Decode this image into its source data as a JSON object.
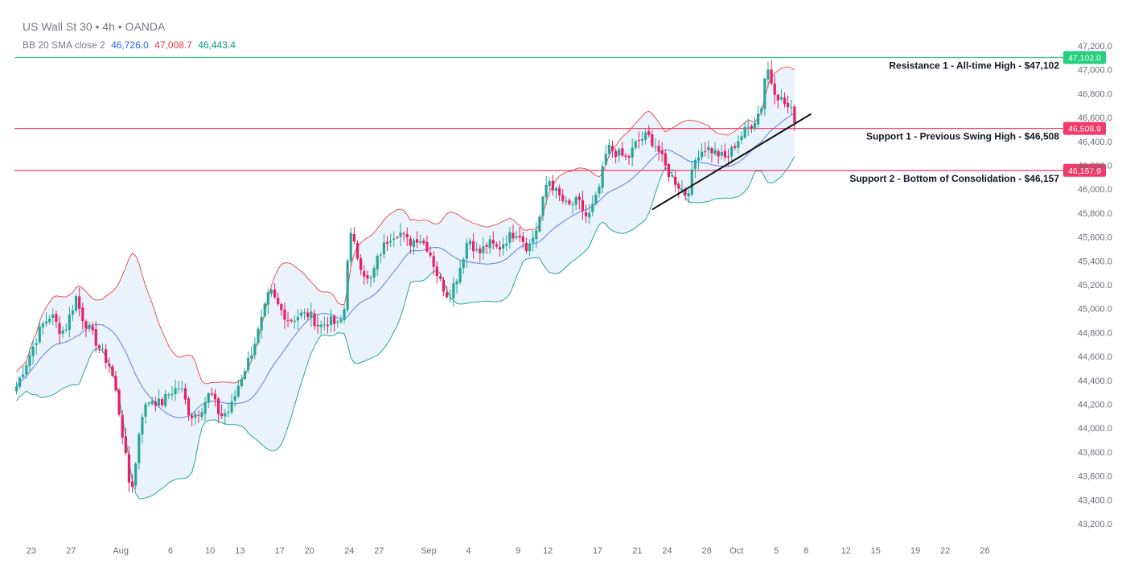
{
  "header": {
    "title": "US Wall St 30 • 4h • OANDA",
    "indicator_label": "BB 20 SMA close 2",
    "indicator_basis": "46,726.0",
    "indicator_upper": "47,008.7",
    "indicator_lower": "46,443.4"
  },
  "colors": {
    "up": "#26a69a",
    "down": "#e91e63",
    "basis": "#5b7fe0",
    "upper_band": "#ef5350",
    "lower_band": "#26a69a",
    "band_fill": "#eaf3fb",
    "resistance": "#26d07c",
    "support": "#f23a6a",
    "trendline": "#111111",
    "axis_text": "#6b6e78",
    "indicator_basis": "#2962ff",
    "indicator_upper": "#f23645",
    "indicator_lower": "#089981"
  },
  "chart_data": {
    "type": "line",
    "chart_kind": "candlestick with Bollinger Bands (20, 2)",
    "instrument": "US Wall St 30",
    "timeframe": "4h",
    "source": "OANDA",
    "ylim": [
      43000,
      47300
    ],
    "y_ticks": [
      47200,
      47000,
      46800,
      46600,
      46400,
      46200,
      46000,
      45800,
      45600,
      45400,
      45200,
      45000,
      44800,
      44600,
      44400,
      44200,
      44000,
      43800,
      43600,
      43400,
      43200
    ],
    "y_tick_labels": [
      "47,200.0",
      "47,000.0",
      "46,800.0",
      "46,600.0",
      "46,400.0",
      "46,200.0",
      "46,000.0",
      "45,800.0",
      "45,600.0",
      "45,400.0",
      "45,200.0",
      "45,000.0",
      "44,800.0",
      "44,600.0",
      "44,400.0",
      "44,200.0",
      "44,000.0",
      "43,800.0",
      "43,600.0",
      "43,400.0",
      "43,200.0"
    ],
    "x_ticks": [
      {
        "label": "23",
        "t": 0
      },
      {
        "label": "27",
        "t": 4
      },
      {
        "label": "Aug",
        "t": 9
      },
      {
        "label": "6",
        "t": 14
      },
      {
        "label": "10",
        "t": 18
      },
      {
        "label": "13",
        "t": 21
      },
      {
        "label": "17",
        "t": 25
      },
      {
        "label": "20",
        "t": 28
      },
      {
        "label": "24",
        "t": 32
      },
      {
        "label": "27",
        "t": 35
      },
      {
        "label": "Sep",
        "t": 40
      },
      {
        "label": "4",
        "t": 44
      },
      {
        "label": "9",
        "t": 49
      },
      {
        "label": "12",
        "t": 52
      },
      {
        "label": "17",
        "t": 57
      },
      {
        "label": "21",
        "t": 61
      },
      {
        "label": "24",
        "t": 64
      },
      {
        "label": "28",
        "t": 68
      },
      {
        "label": "Oct",
        "t": 71
      },
      {
        "label": "5",
        "t": 75
      },
      {
        "label": "8",
        "t": 78
      },
      {
        "label": "12",
        "t": 82
      },
      {
        "label": "15",
        "t": 85
      },
      {
        "label": "19",
        "t": 89
      },
      {
        "label": "22",
        "t": 92
      },
      {
        "label": "26",
        "t": 96
      }
    ],
    "price_path": [
      [
        -1.5,
        44350
      ],
      [
        -1,
        44450
      ],
      [
        0,
        44650
      ],
      [
        1,
        44850
      ],
      [
        2,
        44950
      ],
      [
        3,
        44800
      ],
      [
        3.5,
        44850
      ],
      [
        4.5,
        45100
      ],
      [
        5,
        44950
      ],
      [
        6,
        44800
      ],
      [
        7,
        44650
      ],
      [
        8,
        44500
      ],
      [
        8.5,
        44300
      ],
      [
        9,
        44050
      ],
      [
        9.5,
        43750
      ],
      [
        10,
        43450
      ],
      [
        10.5,
        43700
      ],
      [
        11,
        44100
      ],
      [
        12,
        44250
      ],
      [
        13,
        44200
      ],
      [
        14,
        44300
      ],
      [
        15,
        44350
      ],
      [
        16,
        44100
      ],
      [
        17,
        44150
      ],
      [
        18,
        44300
      ],
      [
        19,
        44100
      ],
      [
        20,
        44150
      ],
      [
        21,
        44400
      ],
      [
        22,
        44600
      ],
      [
        23,
        44850
      ],
      [
        24,
        45150
      ],
      [
        25,
        45000
      ],
      [
        26,
        44900
      ],
      [
        27,
        44950
      ],
      [
        28,
        44950
      ],
      [
        29,
        44850
      ],
      [
        30,
        44900
      ],
      [
        31,
        44850
      ],
      [
        31.5,
        45000
      ],
      [
        32,
        45650
      ],
      [
        33,
        45400
      ],
      [
        34,
        45200
      ],
      [
        35,
        45450
      ],
      [
        36,
        45600
      ],
      [
        37,
        45650
      ],
      [
        38,
        45550
      ],
      [
        39,
        45600
      ],
      [
        40,
        45500
      ],
      [
        41,
        45250
      ],
      [
        42,
        45100
      ],
      [
        43,
        45300
      ],
      [
        44,
        45600
      ],
      [
        45,
        45450
      ],
      [
        46,
        45550
      ],
      [
        47,
        45500
      ],
      [
        48,
        45600
      ],
      [
        49,
        45650
      ],
      [
        50,
        45500
      ],
      [
        51,
        45700
      ],
      [
        52,
        46100
      ],
      [
        53,
        45950
      ],
      [
        54,
        45850
      ],
      [
        55,
        45900
      ],
      [
        56,
        45750
      ],
      [
        57,
        45950
      ],
      [
        58,
        46350
      ],
      [
        59,
        46300
      ],
      [
        60,
        46250
      ],
      [
        61,
        46400
      ],
      [
        62,
        46450
      ],
      [
        63,
        46350
      ],
      [
        64,
        46150
      ],
      [
        65,
        46050
      ],
      [
        66,
        45950
      ],
      [
        67,
        46300
      ],
      [
        68,
        46350
      ],
      [
        69,
        46300
      ],
      [
        70,
        46250
      ],
      [
        71,
        46400
      ],
      [
        72,
        46500
      ],
      [
        73,
        46600
      ],
      [
        73.5,
        46700
      ],
      [
        74,
        47050
      ],
      [
        74.5,
        46900
      ],
      [
        75,
        46800
      ],
      [
        76,
        46700
      ],
      [
        76.5,
        46650
      ],
      [
        77,
        46560
      ]
    ],
    "bollinger": {
      "period": 20,
      "multiplier": 2,
      "source": "close",
      "basis_last": 46726.0,
      "upper_last": 47008.7,
      "lower_last": 46443.4
    },
    "horizontal_levels": [
      {
        "price": 47102.0,
        "price_label": "47,102.0",
        "annotation": "Resistance 1 - All-time High - $47,102",
        "role": "resistance"
      },
      {
        "price": 46508.9,
        "price_label": "46,508.9",
        "annotation": "Support 1 - Previous Swing High - $46,508",
        "role": "support"
      },
      {
        "price": 46157.9,
        "price_label": "46,157.9",
        "annotation": "Support 2 - Bottom of Consolidation - $46,157",
        "role": "support"
      }
    ],
    "trendline": {
      "from": [
        62.5,
        45830
      ],
      "to": [
        78.5,
        46630
      ]
    },
    "grid": false,
    "legend": "top-left"
  }
}
